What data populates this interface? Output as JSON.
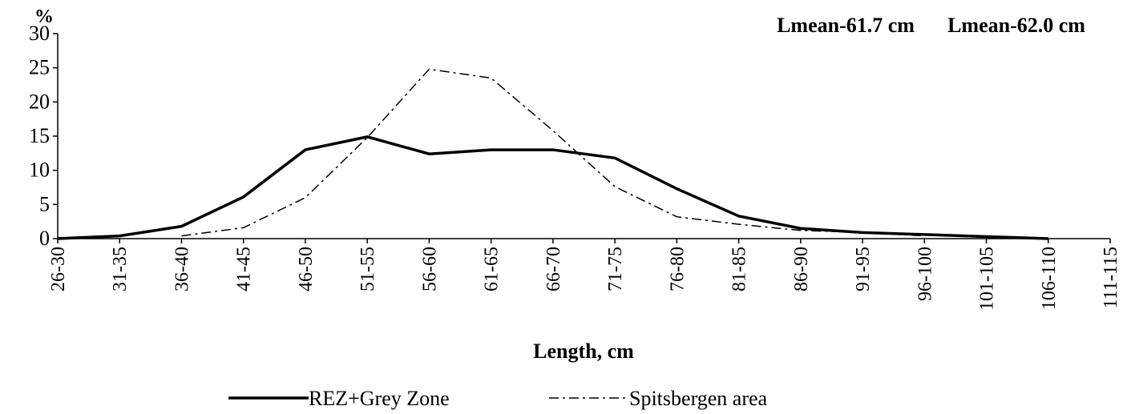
{
  "chart_data": {
    "type": "line",
    "y_axis_label": "%",
    "x_axis_label": "Length, cm",
    "annotations": [
      "Lmean-61.7 cm",
      "Lmean-62.0 cm"
    ],
    "categories": [
      "26-30",
      "31-35",
      "36-40",
      "41-45",
      "46-50",
      "51-55",
      "56-60",
      "61-65",
      "66-70",
      "71-75",
      "76-80",
      "81-85",
      "86-90",
      "91-95",
      "96-100",
      "101-105",
      "106-110",
      "111-115"
    ],
    "series": [
      {
        "name": "REZ+Grey Zone",
        "color": "#000000",
        "style": "solid",
        "values": [
          0,
          0.4,
          1.8,
          6.1,
          13,
          14.9,
          12.4,
          13,
          13,
          11.8,
          7.3,
          3.3,
          1.5,
          0.9,
          0.6,
          0.3,
          0,
          null
        ]
      },
      {
        "name": "Spitsbergen area",
        "color": "#000000",
        "style": "dashdot",
        "values": [
          null,
          null,
          0.4,
          1.6,
          6,
          14.8,
          24.8,
          23.5,
          15.8,
          7.6,
          3.2,
          2.1,
          1.2,
          0.9,
          0.4,
          null,
          null,
          null
        ]
      }
    ],
    "ylim": [
      0,
      30
    ],
    "yticks": [
      0,
      5,
      10,
      15,
      20,
      25,
      30
    ],
    "grid": false,
    "legend": "bottom"
  }
}
